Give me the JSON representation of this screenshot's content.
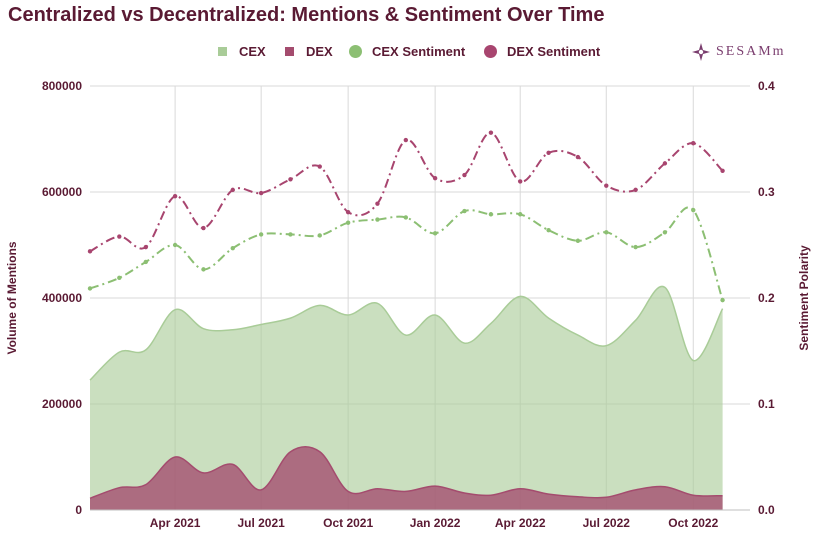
{
  "title": "Centralized vs Decentralized: Mentions & Sentiment Over Time",
  "logo": {
    "text": "SESAMm",
    "icon": "sesamm-logo-icon"
  },
  "legend": [
    {
      "label": "CEX",
      "symbol": "square",
      "color": "#a9cc98"
    },
    {
      "label": "DEX",
      "symbol": "square",
      "color": "#a44c6e"
    },
    {
      "label": "CEX Sentiment",
      "symbol": "circle",
      "color": "#8cbf73"
    },
    {
      "label": "DEX Sentiment",
      "symbol": "circle",
      "color": "#a8456f"
    }
  ],
  "chart_data": {
    "type": "area",
    "ylabel": "Volume of Mentions",
    "y2label": "Sentiment Polarity",
    "ylim": [
      0,
      800000
    ],
    "y2lim": [
      0,
      0.4
    ],
    "yticks": [
      0,
      200000,
      400000,
      600000,
      800000
    ],
    "y2ticks": [
      0.0,
      0.1,
      0.2,
      0.3,
      0.4
    ],
    "xlim": [
      "2021-01-01",
      "2022-11-30"
    ],
    "xticks": [
      {
        "date": "2021-04-01",
        "label": "Apr 2021"
      },
      {
        "date": "2021-07-01",
        "label": "Jul 2021"
      },
      {
        "date": "2021-10-01",
        "label": "Oct 2021"
      },
      {
        "date": "2022-01-01",
        "label": "Jan 2022"
      },
      {
        "date": "2022-04-01",
        "label": "Apr 2022"
      },
      {
        "date": "2022-07-01",
        "label": "Jul 2022"
      },
      {
        "date": "2022-10-01",
        "label": "Oct 2022"
      }
    ],
    "grid": true,
    "legend_position": "top-center",
    "x": [
      "2021-01-01",
      "2021-02-01",
      "2021-03-01",
      "2021-04-01",
      "2021-05-01",
      "2021-06-01",
      "2021-07-01",
      "2021-08-01",
      "2021-09-01",
      "2021-10-01",
      "2021-11-01",
      "2021-12-01",
      "2022-01-01",
      "2022-02-01",
      "2022-03-01",
      "2022-04-01",
      "2022-05-01",
      "2022-06-01",
      "2022-07-01",
      "2022-08-01",
      "2022-09-01",
      "2022-10-01",
      "2022-11-01"
    ],
    "series": [
      {
        "name": "CEX",
        "axis": "left",
        "kind": "area",
        "color": "#a9cc98",
        "values": [
          245000,
          298000,
          302000,
          378000,
          342000,
          340000,
          350000,
          362000,
          386000,
          368000,
          390000,
          330000,
          368000,
          315000,
          352000,
          403000,
          362000,
          330000,
          310000,
          358000,
          420000,
          282000,
          380000
        ]
      },
      {
        "name": "DEX",
        "axis": "left",
        "kind": "area",
        "color": "#a44c6e",
        "values": [
          22000,
          42000,
          48000,
          100000,
          70000,
          86000,
          38000,
          110000,
          110000,
          35000,
          40000,
          35000,
          45000,
          32000,
          28000,
          40000,
          30000,
          25000,
          24000,
          38000,
          44000,
          28000,
          27000
        ]
      },
      {
        "name": "CEX Sentiment",
        "axis": "right",
        "kind": "line",
        "color": "#8cbf73",
        "values": [
          0.209,
          0.219,
          0.234,
          0.25,
          0.227,
          0.247,
          0.26,
          0.26,
          0.259,
          0.271,
          0.274,
          0.276,
          0.261,
          0.282,
          0.279,
          0.279,
          0.264,
          0.254,
          0.262,
          0.248,
          0.262,
          0.283,
          0.198
        ]
      },
      {
        "name": "DEX Sentiment",
        "axis": "right",
        "kind": "line",
        "color": "#a8456f",
        "values": [
          0.244,
          0.258,
          0.248,
          0.296,
          0.266,
          0.302,
          0.299,
          0.312,
          0.324,
          0.281,
          0.289,
          0.349,
          0.313,
          0.316,
          0.356,
          0.31,
          0.337,
          0.333,
          0.306,
          0.302,
          0.327,
          0.346,
          0.32
        ]
      }
    ]
  }
}
